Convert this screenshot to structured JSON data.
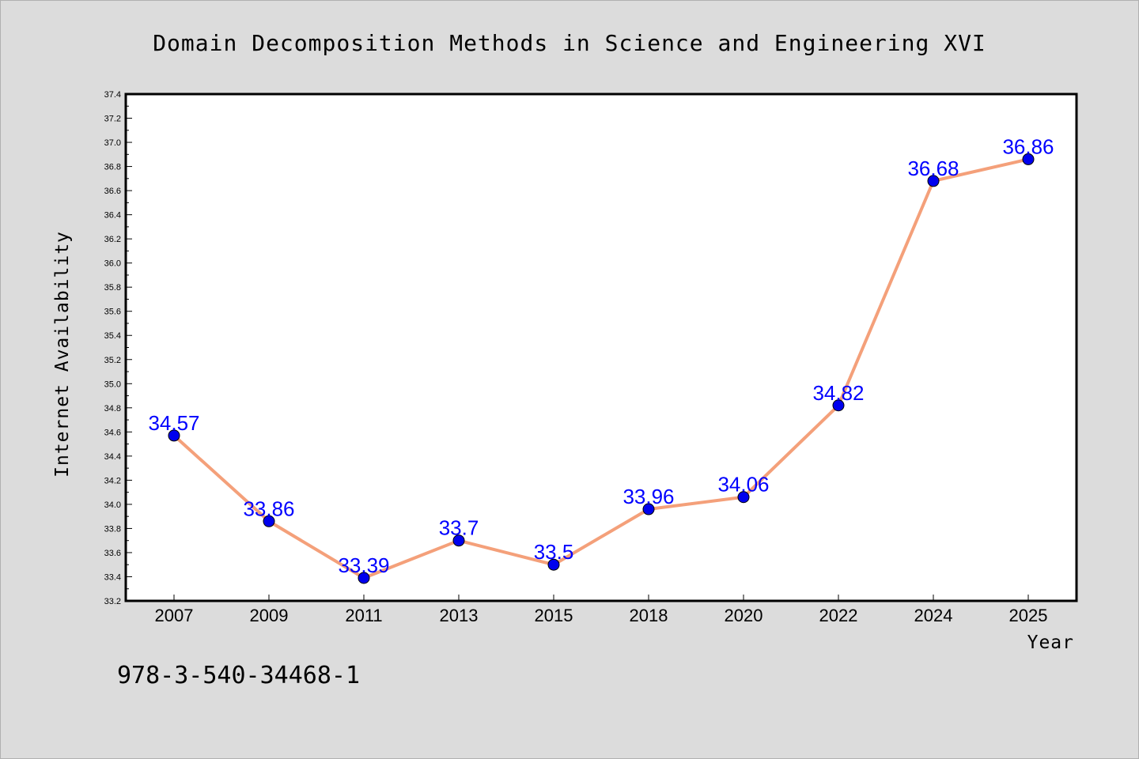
{
  "chart_data": {
    "type": "line",
    "title": "Domain Decomposition Methods in Science and Engineering XVI",
    "xlabel": "Year",
    "ylabel": "Internet Availability",
    "categories": [
      "2007",
      "2009",
      "2011",
      "2013",
      "2015",
      "2018",
      "2020",
      "2022",
      "2024",
      "2025"
    ],
    "series": [
      {
        "values": [
          34.57,
          33.86,
          33.39,
          33.7,
          33.5,
          33.96,
          34.06,
          34.82,
          36.68,
          36.86
        ],
        "data_labels": [
          "34.57",
          "33.86",
          "33.39",
          "33.7",
          "33.5",
          "33.96",
          "34.06",
          "34.82",
          "36.68",
          "36.86"
        ],
        "line_color": "#f4a07a",
        "marker_color": "#0000ee"
      }
    ],
    "ylim": [
      33.2,
      37.4
    ],
    "yticks": [
      "33.2",
      "33.4",
      "33.6",
      "33.8",
      "34.0",
      "34.2",
      "34.4",
      "34.6",
      "34.8",
      "35.0",
      "35.2",
      "35.4",
      "35.6",
      "35.8",
      "36.0",
      "36.2",
      "36.4",
      "36.6",
      "36.8",
      "37.0",
      "37.2",
      "37.4"
    ],
    "grid": false,
    "legend": "none",
    "data_label_color": "#0000ff",
    "background_color": "#dcdcdc",
    "plot_background_color": "#ffffff"
  },
  "footer": {
    "isbn": "978-3-540-34468-1"
  }
}
